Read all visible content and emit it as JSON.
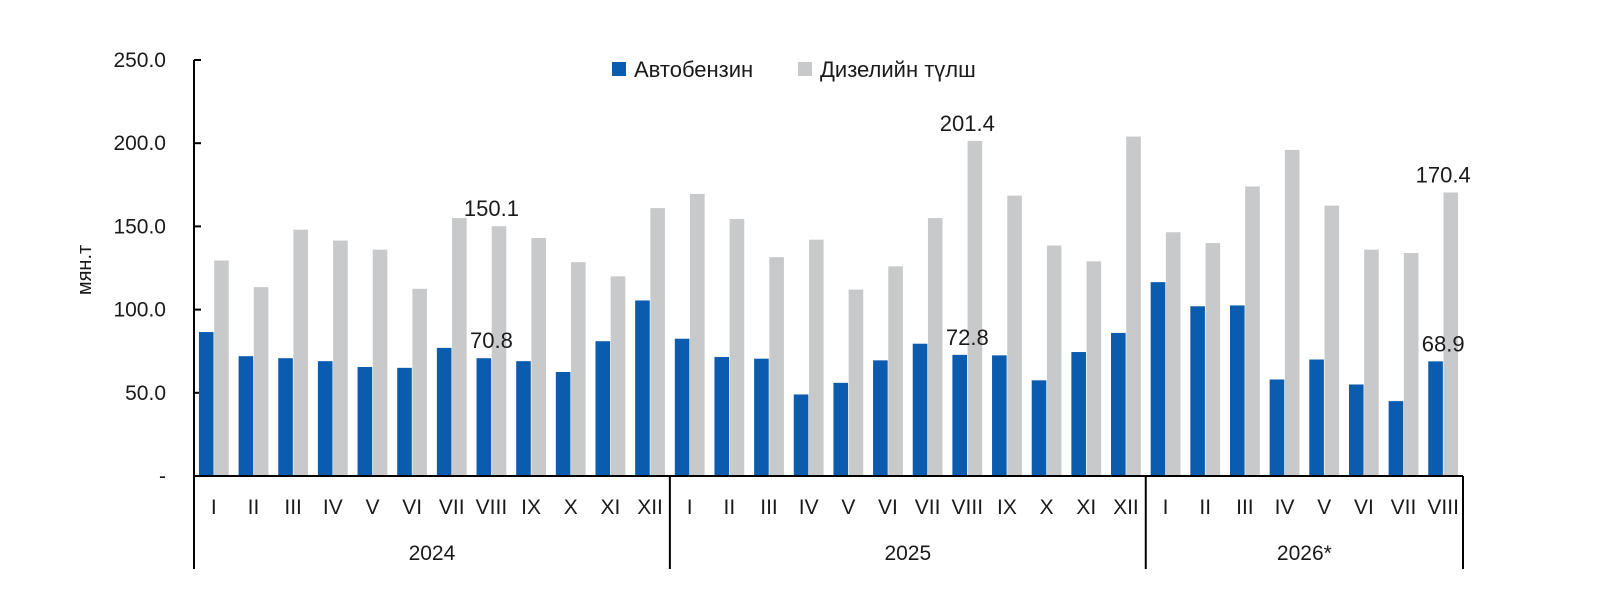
{
  "chart_data": {
    "type": "bar",
    "ylabel": "мян.т",
    "ylim": [
      0,
      250
    ],
    "yticks": [
      {
        "value": 0,
        "label": "-"
      },
      {
        "value": 50,
        "label": "50.0"
      },
      {
        "value": 100,
        "label": "100.0"
      },
      {
        "value": 150,
        "label": "150.0"
      },
      {
        "value": 200,
        "label": "200.0"
      },
      {
        "value": 250,
        "label": "250.0"
      }
    ],
    "legend_position": "top-center",
    "grid": false,
    "groups": [
      {
        "label": "2024",
        "categories": [
          "I",
          "II",
          "III",
          "IV",
          "V",
          "VI",
          "VII",
          "VIII",
          "IX",
          "X",
          "XI",
          "XII"
        ]
      },
      {
        "label": "2025",
        "categories": [
          "I",
          "II",
          "III",
          "IV",
          "V",
          "VI",
          "VII",
          "VIII",
          "IX",
          "X",
          "XI",
          "XII"
        ]
      },
      {
        "label": "2026*",
        "categories": [
          "I",
          "II",
          "III",
          "IV",
          "V",
          "VI",
          "VII",
          "VIII"
        ]
      }
    ],
    "series": [
      {
        "name": "Автобензин",
        "color": "#0B5BAE",
        "values": [
          86.5,
          72,
          70.8,
          69,
          65.5,
          65,
          77,
          70.8,
          69,
          62.5,
          81,
          105.5,
          82.5,
          71.5,
          70.5,
          49,
          56,
          69.5,
          79.5,
          72.8,
          72.5,
          57.5,
          74.5,
          86,
          116.5,
          102,
          102.5,
          58,
          70,
          55,
          45,
          68.9
        ]
      },
      {
        "name": "Дизелийн түлш",
        "color": "#C8C9CA",
        "values": [
          129.5,
          113.5,
          148,
          141.5,
          136,
          112.5,
          155,
          150.1,
          143,
          128.5,
          120,
          161,
          169.5,
          154.5,
          131.5,
          142,
          112,
          126,
          155,
          201.4,
          168.5,
          138.5,
          129,
          204,
          146.5,
          140,
          174,
          196,
          162.5,
          136,
          134,
          170.4
        ]
      }
    ],
    "annotations": [
      {
        "group": 0,
        "index": 7,
        "series": 0,
        "text": "70.8"
      },
      {
        "group": 0,
        "index": 7,
        "series": 1,
        "text": "150.1"
      },
      {
        "group": 1,
        "index": 7,
        "series": 0,
        "text": "72.8"
      },
      {
        "group": 1,
        "index": 7,
        "series": 1,
        "text": "201.4"
      },
      {
        "group": 2,
        "index": 7,
        "series": 0,
        "text": "68.9"
      },
      {
        "group": 2,
        "index": 7,
        "series": 1,
        "text": "170.4"
      }
    ]
  }
}
